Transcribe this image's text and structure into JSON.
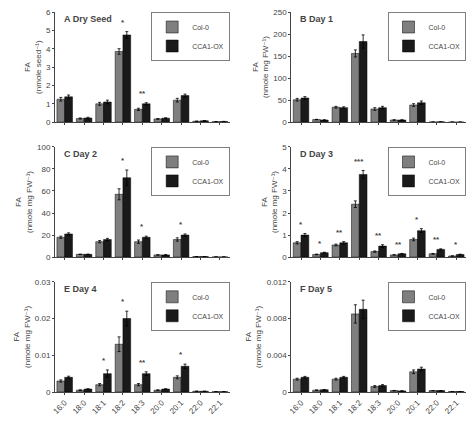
{
  "chart_data": [
    {
      "type": "bar",
      "title": "A Dry Seed",
      "ylabel": "FA (nmole seed⁻¹)",
      "categories": [
        "16:0",
        "18:0",
        "18:1",
        "18:2",
        "18:3",
        "20:0",
        "20:1",
        "22:0",
        "22:1"
      ],
      "series": [
        {
          "name": "Col-0",
          "color": "#7f7f7f",
          "values": [
            1.25,
            0.2,
            1.0,
            3.85,
            0.7,
            0.18,
            1.2,
            0.05,
            0.03
          ],
          "errors": [
            0.1,
            0.03,
            0.08,
            0.15,
            0.06,
            0.02,
            0.1,
            0.01,
            0.005
          ]
        },
        {
          "name": "CCA1-OX",
          "color": "#1a1a1a",
          "values": [
            1.38,
            0.23,
            1.1,
            4.75,
            1.0,
            0.22,
            1.45,
            0.08,
            0.04
          ],
          "errors": [
            0.1,
            0.04,
            0.1,
            0.18,
            0.06,
            0.02,
            0.08,
            0.01,
            0.005
          ]
        }
      ],
      "annotations": [
        {
          "category": "18:2",
          "text": "*"
        },
        {
          "category": "18:3",
          "text": "**"
        }
      ],
      "ylim": [
        0,
        6
      ],
      "yticks": [
        0,
        1,
        2,
        3,
        4,
        5,
        6
      ],
      "grid": false,
      "legend": "upper right",
      "tick_labels": "y"
    },
    {
      "type": "bar",
      "title": "B Day 1",
      "ylabel": "FA (nmole mg FW⁻¹)",
      "categories": [
        "16:0",
        "18:0",
        "18:1",
        "18:2",
        "18:3",
        "20:0",
        "20:1",
        "22:0",
        "22:1"
      ],
      "series": [
        {
          "name": "Col-0",
          "color": "#7f7f7f",
          "values": [
            51,
            6,
            34,
            156,
            30,
            5,
            39,
            0.5,
            0.3
          ],
          "errors": [
            3,
            0.5,
            2,
            8,
            3,
            0.5,
            3,
            0.1,
            0.05
          ]
        },
        {
          "name": "CCA1-OX",
          "color": "#1a1a1a",
          "values": [
            55,
            5,
            33,
            183,
            33,
            5,
            44,
            0.8,
            0.3
          ],
          "errors": [
            3,
            0.5,
            2,
            15,
            3,
            0.5,
            4,
            0.1,
            0.05
          ]
        }
      ],
      "annotations": [],
      "ylim": [
        0,
        250
      ],
      "yticks": [
        0,
        50,
        100,
        150,
        200,
        250
      ],
      "grid": false,
      "legend": "upper right",
      "tick_labels": "y"
    },
    {
      "type": "bar",
      "title": "C Day 2",
      "ylabel": "FA (nmole mg FW⁻¹)",
      "categories": [
        "16:0",
        "18:0",
        "18:1",
        "18:2",
        "18:3",
        "20:0",
        "20:1",
        "22:0",
        "22:1"
      ],
      "series": [
        {
          "name": "Col-0",
          "color": "#7f7f7f",
          "values": [
            18,
            2.5,
            14,
            57,
            14,
            2,
            16,
            0.5,
            0.2
          ],
          "errors": [
            1,
            0.2,
            1,
            5,
            1.5,
            0.2,
            1.5,
            0.05,
            0.03
          ]
        },
        {
          "name": "CCA1-OX",
          "color": "#1a1a1a",
          "values": [
            21,
            2.5,
            16,
            72,
            18,
            2,
            20,
            0.5,
            0.2
          ],
          "errors": [
            1,
            0.2,
            1,
            7,
            1,
            0.2,
            1,
            0.05,
            0.03
          ]
        }
      ],
      "annotations": [
        {
          "category": "18:2",
          "text": "*"
        },
        {
          "category": "18:3",
          "text": "*"
        },
        {
          "category": "20:1",
          "text": "*"
        }
      ],
      "ylim": [
        0,
        100
      ],
      "yticks": [
        0,
        20,
        40,
        60,
        80,
        100
      ],
      "grid": false,
      "legend": "upper right",
      "tick_labels": "y"
    },
    {
      "type": "bar",
      "title": "D Day 3",
      "ylabel": "FA (nmole mg FW⁻¹)",
      "categories": [
        "16:0",
        "18:0",
        "18:1",
        "18:2",
        "18:3",
        "20:0",
        "20:1",
        "22:0",
        "22:1"
      ],
      "series": [
        {
          "name": "Col-0",
          "color": "#7f7f7f",
          "values": [
            0.65,
            0.12,
            0.55,
            2.4,
            0.25,
            0.1,
            0.8,
            0.15,
            0.05
          ],
          "errors": [
            0.05,
            0.015,
            0.04,
            0.15,
            0.03,
            0.01,
            0.06,
            0.015,
            0.005
          ]
        },
        {
          "name": "CCA1-OX",
          "color": "#1a1a1a",
          "values": [
            1.0,
            0.2,
            0.65,
            3.75,
            0.5,
            0.15,
            1.2,
            0.35,
            0.12
          ],
          "errors": [
            0.07,
            0.02,
            0.05,
            0.18,
            0.06,
            0.015,
            0.09,
            0.025,
            0.01
          ]
        }
      ],
      "annotations": [
        {
          "category": "16:0",
          "text": "*"
        },
        {
          "category": "18:0",
          "text": "*"
        },
        {
          "category": "18:1",
          "text": "**"
        },
        {
          "category": "18:2",
          "text": "***"
        },
        {
          "category": "18:3",
          "text": "**"
        },
        {
          "category": "20:0",
          "text": "**"
        },
        {
          "category": "20:1",
          "text": "*"
        },
        {
          "category": "22:0",
          "text": "**"
        },
        {
          "category": "22:1",
          "text": "*"
        }
      ],
      "ylim": [
        0,
        5
      ],
      "yticks": [
        0,
        1,
        2,
        3,
        4,
        5
      ],
      "grid": false,
      "legend": "upper right",
      "tick_labels": "y"
    },
    {
      "type": "bar",
      "title": "E Day 4",
      "ylabel": "FA (nmole mg FW⁻¹)",
      "categories": [
        "16:0",
        "18:0",
        "18:1",
        "18:2",
        "18:3",
        "20:0",
        "20:1",
        "22:0",
        "22:1"
      ],
      "series": [
        {
          "name": "Col-0",
          "color": "#7f7f7f",
          "values": [
            0.003,
            0.0005,
            0.002,
            0.013,
            0.002,
            0.0005,
            0.004,
            0.0002,
            0.0001
          ],
          "errors": [
            0.0003,
            0.0001,
            0.0003,
            0.002,
            0.0003,
            0.0001,
            0.0004,
            2e-05,
            1e-05
          ]
        },
        {
          "name": "CCA1-OX",
          "color": "#1a1a1a",
          "values": [
            0.004,
            0.0008,
            0.005,
            0.02,
            0.005,
            0.0008,
            0.007,
            0.0002,
            0.0001
          ],
          "errors": [
            0.0003,
            0.0001,
            0.001,
            0.002,
            0.0005,
            0.0001,
            0.0006,
            2e-05,
            1e-05
          ]
        }
      ],
      "annotations": [
        {
          "category": "18:1",
          "text": "*"
        },
        {
          "category": "18:2",
          "text": "*"
        },
        {
          "category": "18:3",
          "text": "**"
        },
        {
          "category": "20:1",
          "text": "*"
        }
      ],
      "ylim": [
        0,
        0.03
      ],
      "yticks": [
        0,
        0.01,
        0.02,
        0.03
      ],
      "grid": false,
      "legend": "upper right"
    },
    {
      "type": "bar",
      "title": "F Day 5",
      "ylabel": "FA (nmole mg FW⁻¹)",
      "categories": [
        "16:0",
        "18:0",
        "18:1",
        "18:2",
        "18:3",
        "20:0",
        "20:1",
        "22:0",
        "22:1"
      ],
      "series": [
        {
          "name": "Col-0",
          "color": "#7f7f7f",
          "values": [
            0.0014,
            0.0002,
            0.0014,
            0.0085,
            0.0006,
            0.00015,
            0.0022,
            0.00015,
            5e-05
          ],
          "errors": [
            0.0001,
            2e-05,
            0.0001,
            0.001,
            0.0001,
            2e-05,
            0.0002,
            1e-05,
            5e-06
          ]
        },
        {
          "name": "CCA1-OX",
          "color": "#1a1a1a",
          "values": [
            0.0016,
            0.00025,
            0.0016,
            0.009,
            0.0007,
            0.00012,
            0.0025,
            0.00015,
            5e-05
          ],
          "errors": [
            0.0001,
            2e-05,
            0.0001,
            0.001,
            0.0001,
            2e-05,
            0.0002,
            1e-05,
            5e-06
          ]
        }
      ],
      "annotations": [],
      "ylim": [
        0,
        0.012
      ],
      "yticks": [
        0,
        0.004,
        0.008,
        0.012
      ],
      "grid": false,
      "legend": "upper right"
    }
  ]
}
